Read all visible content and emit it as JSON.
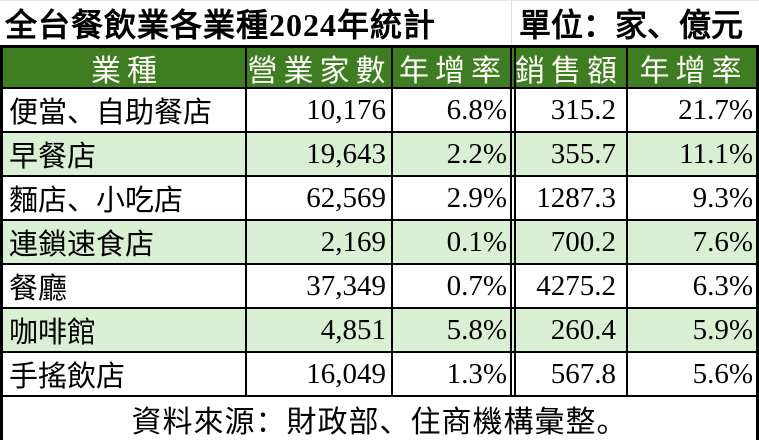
{
  "title": {
    "left": "全台餐飲業各業種2024年統計",
    "unit": "單位：家、億元"
  },
  "table": {
    "headers": [
      "業種",
      "營業家數",
      "年增率",
      "銷售額",
      "年增率"
    ],
    "rows": [
      [
        "便當、自助餐店",
        "10,176",
        "6.8%",
        "315.2",
        "21.7%"
      ],
      [
        "早餐店",
        "19,643",
        "2.2%",
        "355.7",
        "11.1%"
      ],
      [
        "麵店、小吃店",
        "62,569",
        "2.9%",
        "1287.3",
        "9.3%"
      ],
      [
        "連鎖速食店",
        "2,169",
        "0.1%",
        "700.2",
        "7.6%"
      ],
      [
        "餐廳",
        "37,349",
        "0.7%",
        "4275.2",
        "6.3%"
      ],
      [
        "咖啡館",
        "4,851",
        "5.8%",
        "260.4",
        "5.9%"
      ],
      [
        "手搖飲店",
        "16,049",
        "1.3%",
        "567.8",
        "5.6%"
      ]
    ]
  },
  "footer": {
    "source": "資料來源：財政部、住商機構彙整。"
  },
  "colors": {
    "header_bg": "#3e7d21",
    "header_text": "#fffef8",
    "alt_row_bg": "#daf0d4",
    "row_bg": "#ffffff",
    "border": "#000000",
    "text": "#000000"
  },
  "chart_data": {
    "type": "table",
    "title": "全台餐飲業各業種2024年統計",
    "unit_label": "單位：家、億元",
    "columns": [
      "業種",
      "營業家數",
      "年增率",
      "銷售額",
      "年增率"
    ],
    "rows": [
      {
        "industry": "便當、自助餐店",
        "stores": 10176,
        "stores_yoy_pct": 6.8,
        "sales_billion_twd": 315.2,
        "sales_yoy_pct": 21.7
      },
      {
        "industry": "早餐店",
        "stores": 19643,
        "stores_yoy_pct": 2.2,
        "sales_billion_twd": 355.7,
        "sales_yoy_pct": 11.1
      },
      {
        "industry": "麵店、小吃店",
        "stores": 62569,
        "stores_yoy_pct": 2.9,
        "sales_billion_twd": 1287.3,
        "sales_yoy_pct": 9.3
      },
      {
        "industry": "連鎖速食店",
        "stores": 2169,
        "stores_yoy_pct": 0.1,
        "sales_billion_twd": 700.2,
        "sales_yoy_pct": 7.6
      },
      {
        "industry": "餐廳",
        "stores": 37349,
        "stores_yoy_pct": 0.7,
        "sales_billion_twd": 4275.2,
        "sales_yoy_pct": 6.3
      },
      {
        "industry": "咖啡館",
        "stores": 4851,
        "stores_yoy_pct": 5.8,
        "sales_billion_twd": 260.4,
        "sales_yoy_pct": 5.9
      },
      {
        "industry": "手搖飲店",
        "stores": 16049,
        "stores_yoy_pct": 1.3,
        "sales_billion_twd": 567.8,
        "sales_yoy_pct": 5.6
      }
    ],
    "source": "資料來源：財政部、住商機構彙整。"
  }
}
